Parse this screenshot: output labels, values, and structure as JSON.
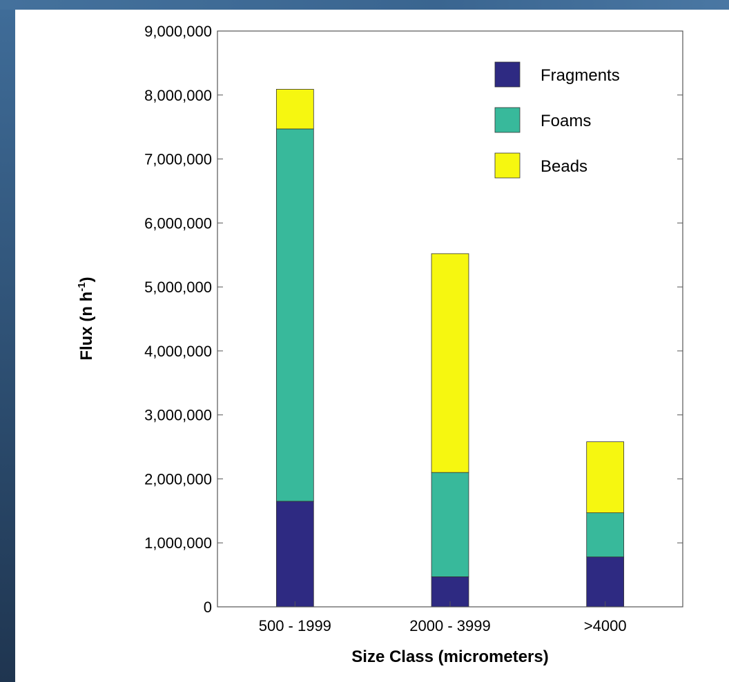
{
  "chart_data": {
    "type": "bar",
    "stacked": true,
    "title": "",
    "xlabel": "Size Class (micrometers)",
    "ylabel_main": "Flux (n h",
    "ylabel_sup": "-1",
    "ylabel_tail": ")",
    "ylim": [
      0,
      9000000
    ],
    "yticks": [
      0,
      1000000,
      2000000,
      3000000,
      4000000,
      5000000,
      6000000,
      7000000,
      8000000,
      9000000
    ],
    "ytick_labels": [
      "0",
      "1,000,000",
      "2,000,000",
      "3,000,000",
      "4,000,000",
      "5,000,000",
      "6,000,000",
      "7,000,000",
      "8,000,000",
      "9,000,000"
    ],
    "categories": [
      "500 - 1999",
      "2000 - 3999",
      ">4000"
    ],
    "series": [
      {
        "name": "Fragments",
        "color": "#2e2a82",
        "values": [
          1650000,
          470000,
          780000
        ]
      },
      {
        "name": "Foams",
        "color": "#38b99b",
        "values": [
          5820000,
          1630000,
          690000
        ]
      },
      {
        "name": "Beads",
        "color": "#f6f710",
        "values": [
          620000,
          3420000,
          1110000
        ]
      }
    ],
    "legend_position": "top-right",
    "grid": false
  }
}
